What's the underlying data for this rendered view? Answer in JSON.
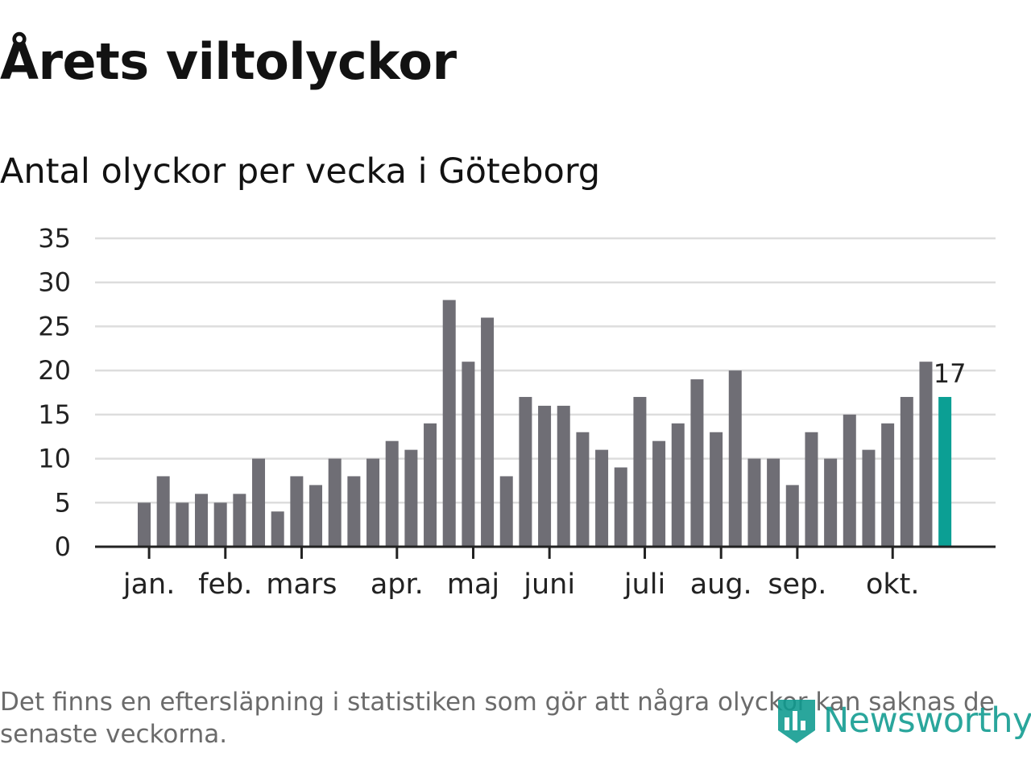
{
  "header": {
    "title": "Årets viltolyckor",
    "subtitle": "Antal olyckor per vecka i Göteborg"
  },
  "footer": {
    "note": "Det finns en eftersläpning i statistiken som gör att några olyckor kan saknas de senaste veckorna.",
    "brand": "Newsworthy",
    "brand_icon": "bar-chart-shield-icon"
  },
  "colors": {
    "bar": "#6f6e75",
    "highlight": "#0b9f94",
    "grid": "#dddddd",
    "axis": "#222222",
    "text": "#222222",
    "brand": "#0d9a8f"
  },
  "chart_data": {
    "type": "bar",
    "title": "Antal olyckor per vecka i Göteborg",
    "xlabel": "",
    "ylabel": "",
    "ylim": [
      0,
      35
    ],
    "yticks": [
      0,
      5,
      10,
      15,
      20,
      25,
      30,
      35
    ],
    "grid": true,
    "x_weeks": [
      1,
      2,
      3,
      4,
      5,
      6,
      7,
      8,
      9,
      10,
      11,
      12,
      13,
      14,
      15,
      16,
      17,
      18,
      19,
      20,
      21,
      22,
      23,
      24,
      25,
      26,
      27,
      28,
      29,
      30,
      31,
      32,
      33,
      34,
      35,
      36,
      37,
      38,
      39,
      40,
      41,
      42,
      43
    ],
    "values": [
      5,
      8,
      5,
      6,
      5,
      6,
      10,
      4,
      8,
      7,
      10,
      8,
      10,
      12,
      11,
      14,
      28,
      21,
      26,
      8,
      17,
      16,
      16,
      13,
      11,
      9,
      17,
      12,
      14,
      19,
      13,
      20,
      10,
      10,
      7,
      13,
      10,
      15,
      11,
      14,
      17,
      21,
      17
    ],
    "highlight_index": 42,
    "highlight_label": "17",
    "month_ticks": [
      {
        "label": "jan.",
        "week": 1.3
      },
      {
        "label": "feb.",
        "week": 5.3
      },
      {
        "label": "mars",
        "week": 9.3
      },
      {
        "label": "apr.",
        "week": 14.3
      },
      {
        "label": "maj",
        "week": 18.3
      },
      {
        "label": "juni",
        "week": 22.3
      },
      {
        "label": "juli",
        "week": 27.3
      },
      {
        "label": "aug.",
        "week": 31.3
      },
      {
        "label": "sep.",
        "week": 35.3
      },
      {
        "label": "okt.",
        "week": 40.3
      }
    ]
  }
}
